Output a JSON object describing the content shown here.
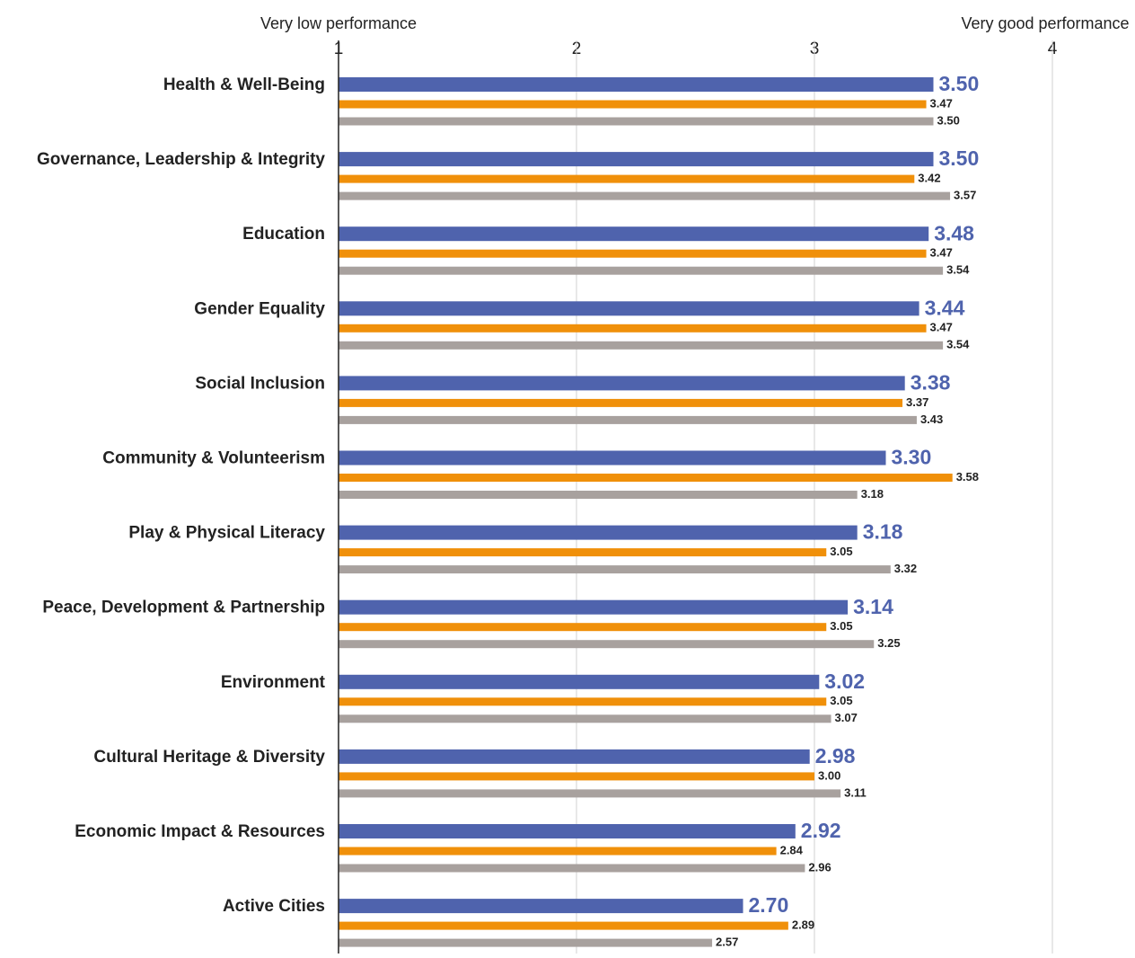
{
  "chart_data": {
    "type": "bar",
    "orientation": "horizontal",
    "annotations": [
      "Very low performance",
      "Very good performance"
    ],
    "categories": [
      "Health & Well-Being",
      "Governance, Leadership & Integrity",
      "Education",
      "Gender Equality",
      "Social Inclusion",
      "Community & Volunteerism",
      "Play & Physical Literacy",
      "Peace, Development & Partnership",
      "Environment",
      "Cultural Heritage & Diversity",
      "Economic Impact & Resources",
      "Active Cities"
    ],
    "series": [
      {
        "color": "#4f63ad",
        "values": [
          3.5,
          3.5,
          3.48,
          3.44,
          3.38,
          3.3,
          3.18,
          3.14,
          3.02,
          2.98,
          2.92,
          2.7
        ],
        "value_labels": [
          "3.50",
          "3.50",
          "3.48",
          "3.44",
          "3.38",
          "3.30",
          "3.18",
          "3.14",
          "3.02",
          "2.98",
          "2.92",
          "2.70"
        ]
      },
      {
        "color": "#f0900a",
        "values": [
          3.47,
          3.42,
          3.47,
          3.47,
          3.37,
          3.58,
          3.05,
          3.05,
          3.05,
          3.0,
          2.84,
          2.89
        ],
        "value_labels": [
          "3.47",
          "3.42",
          "3.47",
          "3.47",
          "3.37",
          "3.58",
          "3.05",
          "3.05",
          "3.05",
          "3.00",
          "2.84",
          "2.89"
        ]
      },
      {
        "color": "#a8a19e",
        "values": [
          3.5,
          3.57,
          3.54,
          3.54,
          3.43,
          3.18,
          3.32,
          3.25,
          3.07,
          3.11,
          2.96,
          2.57
        ],
        "value_labels": [
          "3.50",
          "3.57",
          "3.54",
          "3.54",
          "3.43",
          "3.18",
          "3.32",
          "3.25",
          "3.07",
          "3.11",
          "2.96",
          "2.57"
        ]
      }
    ],
    "xlim": [
      1,
      4
    ],
    "xticks": [
      1,
      2,
      3,
      4
    ],
    "grid": true
  }
}
